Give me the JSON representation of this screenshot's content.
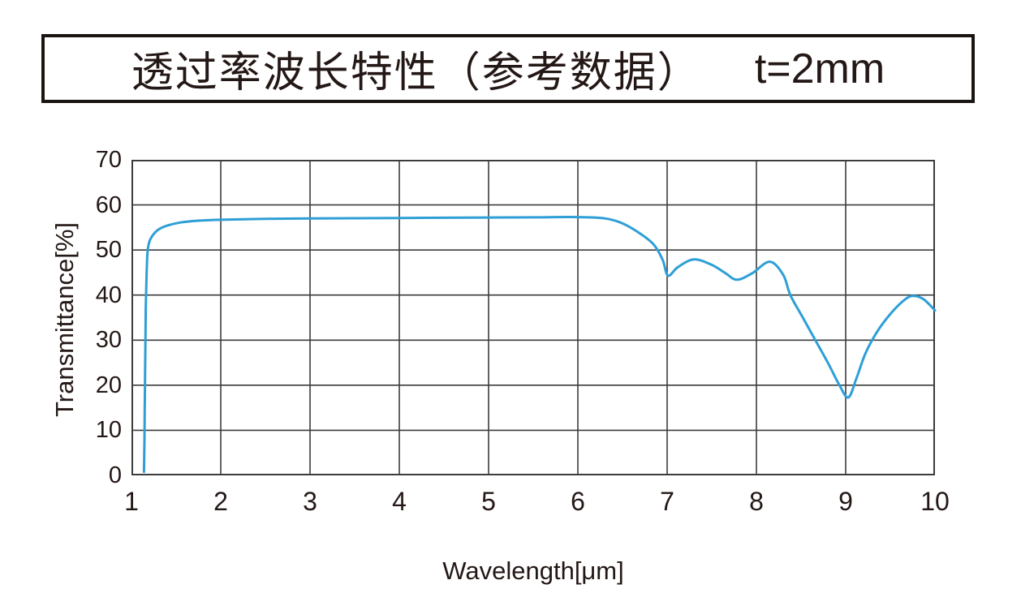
{
  "title": {
    "main": "透过率波长特性（参考数据）",
    "thickness": "t=2mm"
  },
  "colors": {
    "curve": "#2E9FD6",
    "grid": "#3C3C3C",
    "plot_border": "#3C3C3C",
    "text": "#231815",
    "title_border": "#1A1512",
    "background": "#FFFFFF"
  },
  "chart_data": {
    "type": "line",
    "title": "透过率波长特性（参考数据） t=2mm",
    "xlabel": "Wavelength[μm]",
    "ylabel": "Transmittance[%]",
    "xlim": [
      1,
      10
    ],
    "ylim": [
      0,
      70
    ],
    "x_ticks": [
      1,
      2,
      3,
      4,
      5,
      6,
      7,
      8,
      9,
      10
    ],
    "y_ticks": [
      0,
      10,
      20,
      30,
      40,
      50,
      60,
      70
    ],
    "grid": true,
    "legend": false,
    "line_color": "#2E9FD6",
    "series": [
      {
        "name": "Transmittance t=2mm",
        "points": [
          [
            1.14,
            0.8
          ],
          [
            1.145,
            8
          ],
          [
            1.15,
            18
          ],
          [
            1.155,
            28
          ],
          [
            1.16,
            37
          ],
          [
            1.17,
            45
          ],
          [
            1.18,
            49.5
          ],
          [
            1.2,
            51.8
          ],
          [
            1.24,
            53.3
          ],
          [
            1.3,
            54.5
          ],
          [
            1.4,
            55.4
          ],
          [
            1.55,
            56.1
          ],
          [
            1.75,
            56.5
          ],
          [
            2.0,
            56.7
          ],
          [
            2.5,
            56.9
          ],
          [
            3.0,
            57.0
          ],
          [
            3.5,
            57.05
          ],
          [
            4.0,
            57.1
          ],
          [
            4.5,
            57.15
          ],
          [
            5.0,
            57.2
          ],
          [
            5.5,
            57.25
          ],
          [
            6.0,
            57.3
          ],
          [
            6.3,
            57.0
          ],
          [
            6.5,
            55.9
          ],
          [
            6.7,
            53.6
          ],
          [
            6.85,
            51.2
          ],
          [
            6.95,
            47.8
          ],
          [
            7.01,
            44.3
          ],
          [
            7.12,
            46.2
          ],
          [
            7.3,
            47.9
          ],
          [
            7.5,
            46.7
          ],
          [
            7.65,
            44.9
          ],
          [
            7.78,
            43.4
          ],
          [
            7.95,
            44.8
          ],
          [
            8.15,
            47.4
          ],
          [
            8.3,
            44.5
          ],
          [
            8.38,
            40
          ],
          [
            8.52,
            35
          ],
          [
            8.66,
            30
          ],
          [
            8.8,
            25
          ],
          [
            8.93,
            20
          ],
          [
            9.03,
            17.3
          ],
          [
            9.12,
            21.5
          ],
          [
            9.22,
            27
          ],
          [
            9.35,
            31.8
          ],
          [
            9.5,
            35.8
          ],
          [
            9.65,
            38.8
          ],
          [
            9.75,
            39.8
          ],
          [
            9.87,
            39.1
          ],
          [
            10.0,
            36.6
          ]
        ]
      }
    ]
  }
}
